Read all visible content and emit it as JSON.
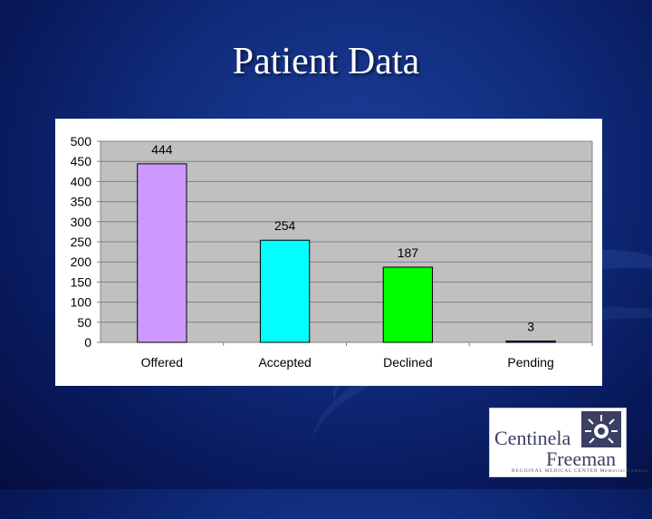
{
  "slide": {
    "title": "Patient Data"
  },
  "logo": {
    "line1": "Centinela",
    "line2": "Freeman",
    "line3": "REGIONAL MEDICAL CENTER Memorial Campus",
    "emblem": "sunburst-emblem-icon"
  },
  "chart_data": {
    "type": "bar",
    "title": "",
    "xlabel": "",
    "ylabel": "",
    "categories": [
      "Offered",
      "Accepted",
      "Declined",
      "Pending"
    ],
    "values": [
      444,
      254,
      187,
      3
    ],
    "data_labels": [
      "444",
      "254",
      "187",
      "3"
    ],
    "colors": [
      "#cc99ff",
      "#00ffff",
      "#00ff00",
      "#0000a0"
    ],
    "ylim": [
      0,
      500
    ],
    "yticks": [
      0,
      50,
      100,
      150,
      200,
      250,
      300,
      350,
      400,
      450,
      500
    ],
    "ytick_labels": [
      "0",
      "50",
      "100",
      "150",
      "200",
      "250",
      "300",
      "350",
      "400",
      "450",
      "500"
    ],
    "grid": true,
    "legend": "none",
    "plot_background": "#c0c0c0"
  }
}
